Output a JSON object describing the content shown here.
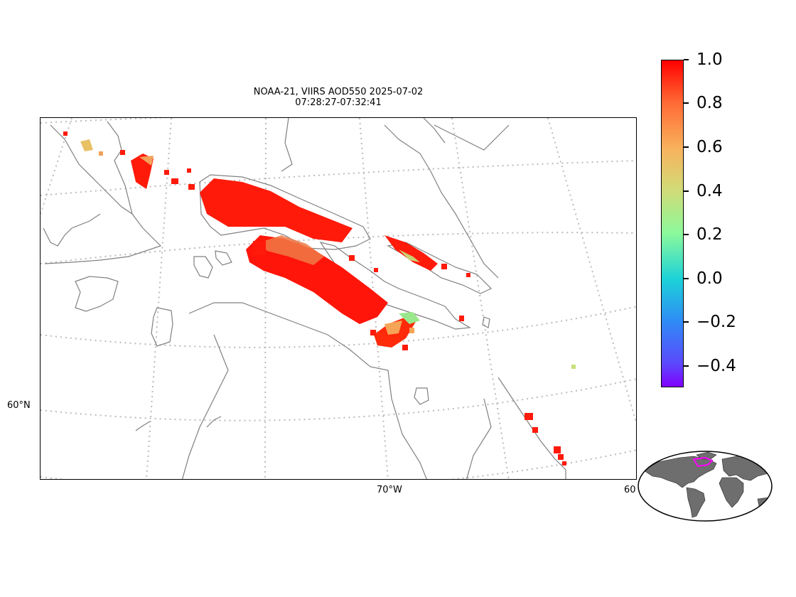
{
  "title": {
    "line1": "NOAA-21, VIIRS AOD550 2025-07-02",
    "line2": "07:28:27-07:32:41"
  },
  "map": {
    "lat_label": "60°N",
    "lon_label_1": "70°W",
    "lon_label_2": "60",
    "coastline_color": "#808080",
    "graticule_color": "#bbbbbb"
  },
  "colorbar": {
    "colormap": "rainbow",
    "range": [
      -0.5,
      1.0
    ],
    "tick_labels": [
      "1.0",
      "0.8",
      "0.6",
      "0.4",
      "0.2",
      "0.0",
      "−0.2",
      "−0.4"
    ],
    "colors": [
      "#ff0000",
      "#ff7f3f",
      "#f8c46a",
      "#8cf99b",
      "#5df5c6",
      "#0ec5e6",
      "#2f8bf6",
      "#6a36fd",
      "#8000ff"
    ]
  },
  "inset": {
    "land_color": "#707070",
    "highlight_color": "#ff00ff"
  }
}
